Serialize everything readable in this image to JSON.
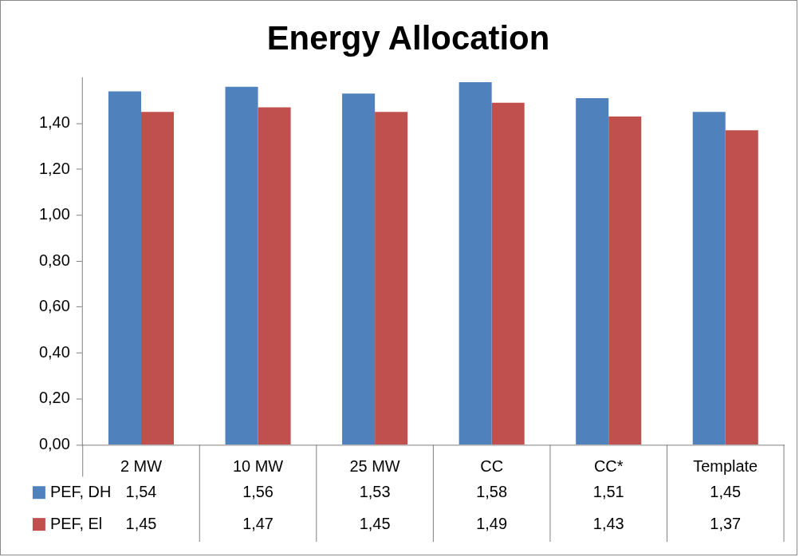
{
  "chart_data": {
    "type": "bar",
    "title": "Energy Allocation",
    "categories": [
      "2 MW",
      "10 MW",
      "25 MW",
      "CC",
      "CC*",
      "Template"
    ],
    "series": [
      {
        "name": "PEF, DH",
        "color": "#4f81bd",
        "values": [
          1.54,
          1.56,
          1.53,
          1.58,
          1.51,
          1.45
        ],
        "value_labels": [
          "1,54",
          "1,56",
          "1,53",
          "1,58",
          "1,51",
          "1,45"
        ]
      },
      {
        "name": "PEF, El",
        "color": "#c0504d",
        "values": [
          1.45,
          1.47,
          1.45,
          1.49,
          1.43,
          1.37
        ],
        "value_labels": [
          "1,45",
          "1,47",
          "1,45",
          "1,49",
          "1,43",
          "1,37"
        ]
      }
    ],
    "ylim": [
      0,
      1.6
    ],
    "yticks": [
      {
        "value": 0,
        "label": "0,00"
      },
      {
        "value": 0.2,
        "label": "0,20"
      },
      {
        "value": 0.4,
        "label": "0,40"
      },
      {
        "value": 0.6,
        "label": "0,60"
      },
      {
        "value": 0.8,
        "label": "0,80"
      },
      {
        "value": 1,
        "label": "1,00"
      },
      {
        "value": 1.2,
        "label": "1,20"
      },
      {
        "value": 1.4,
        "label": "1,40"
      }
    ],
    "grid": false,
    "legend": "bottom left"
  }
}
